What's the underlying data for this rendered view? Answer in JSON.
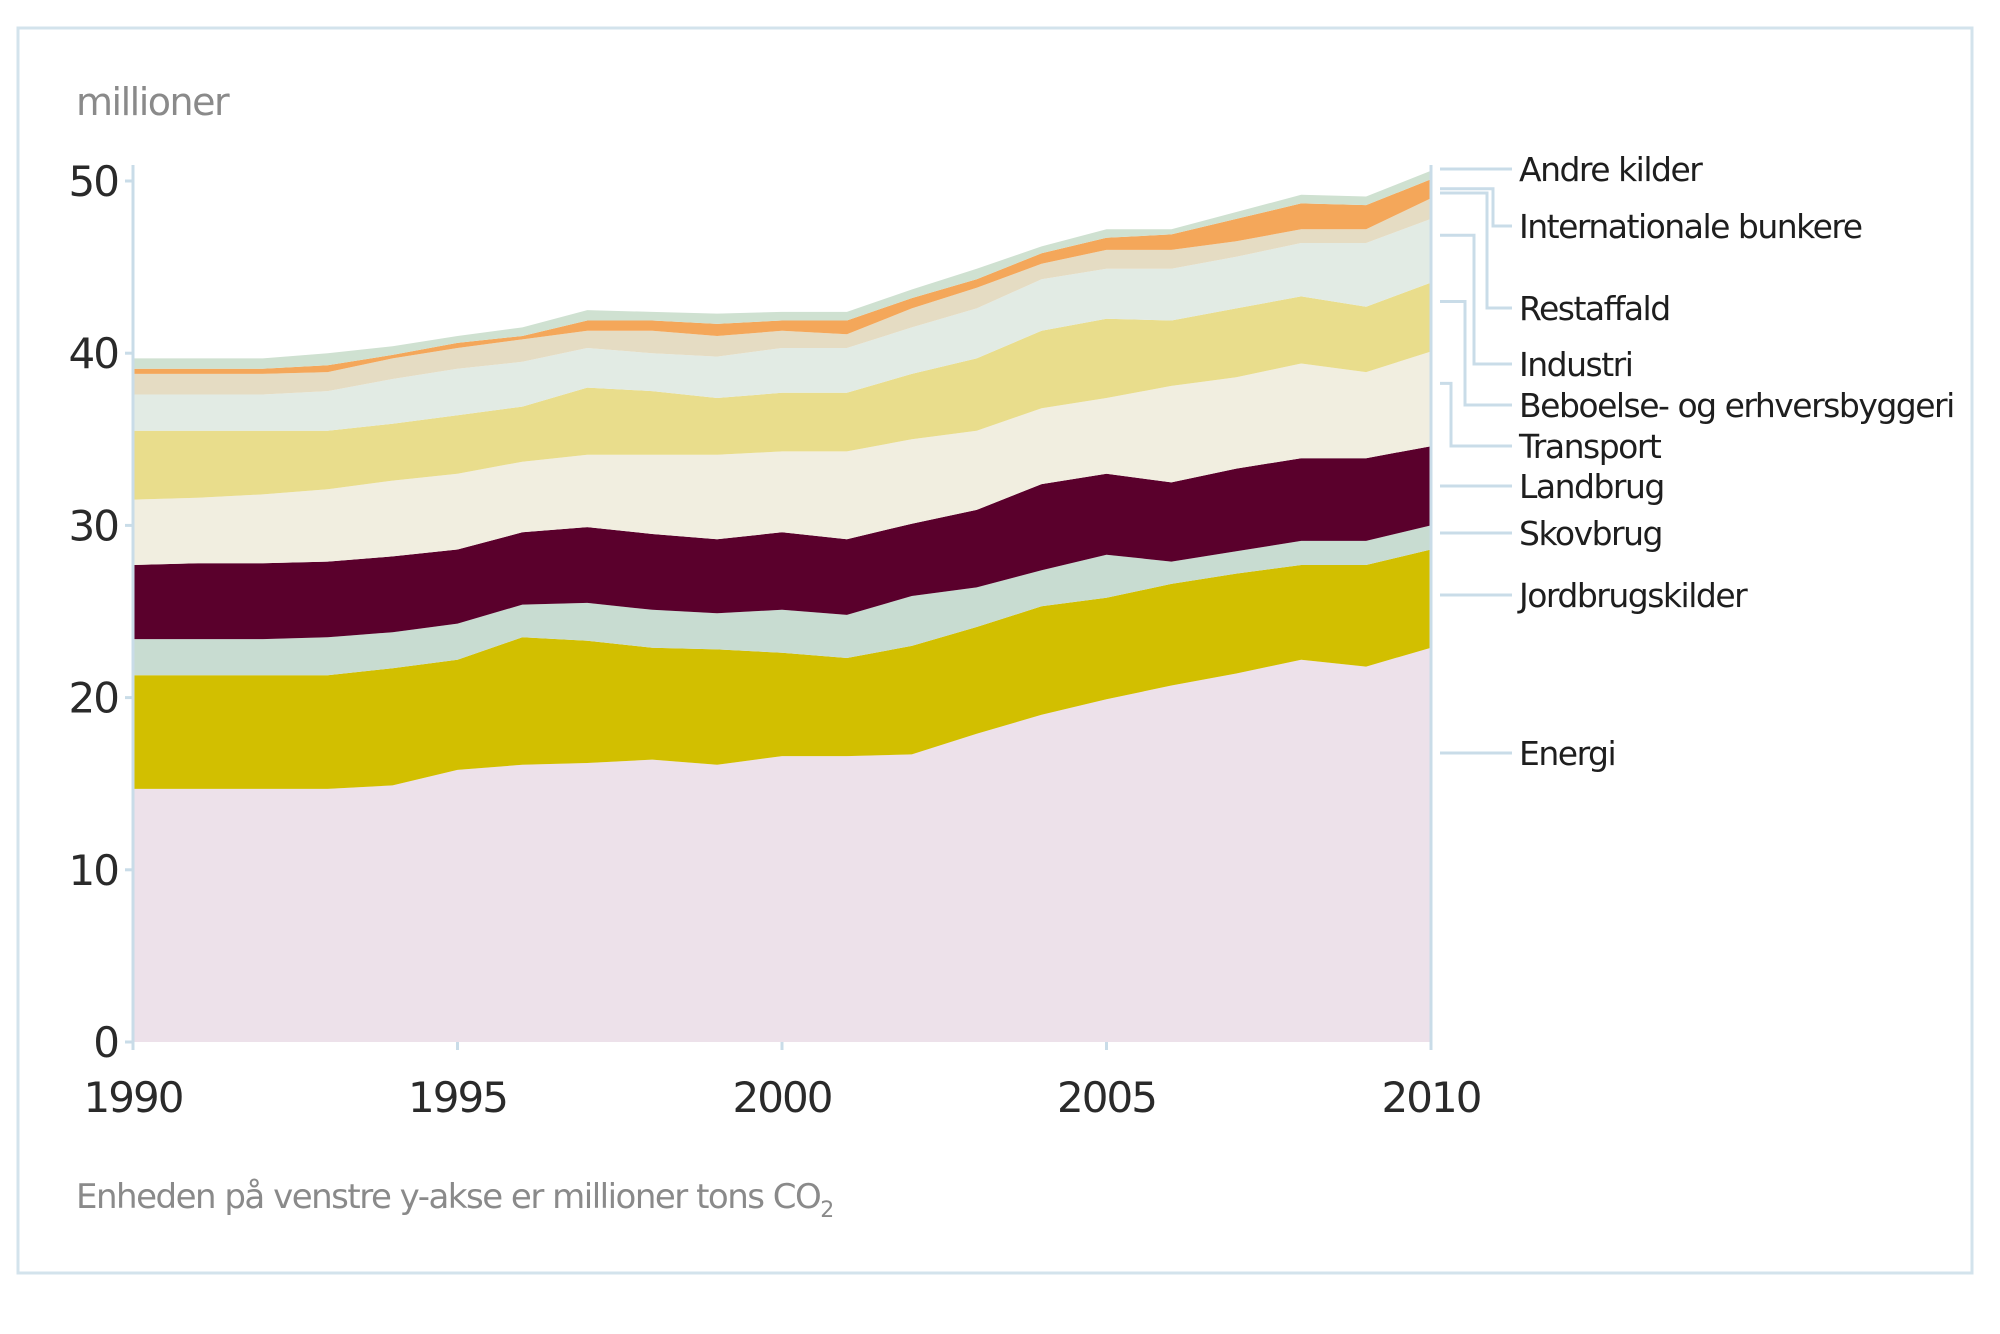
{
  "chart_data": {
    "type": "area",
    "stacked": true,
    "ylabel": "millioner",
    "note": "Enheden på venstre y-akse er millioner tons CO",
    "note_subscript": "2",
    "ylim": [
      0,
      50
    ],
    "yticks": [
      0,
      10,
      20,
      30,
      40,
      50
    ],
    "xlim": [
      1990,
      2010
    ],
    "xticks": [
      1990,
      1995,
      2000,
      2005,
      2010
    ],
    "grid": false,
    "legend_placement": "right",
    "x": [
      1990,
      1991,
      1992,
      1993,
      1994,
      1995,
      1996,
      1997,
      1998,
      1999,
      2000,
      2001,
      2002,
      2003,
      2004,
      2005,
      2006,
      2007,
      2008,
      2009,
      2010
    ],
    "series": [
      {
        "name": "Energi",
        "color": "#ede1ea",
        "values": [
          14.7,
          14.7,
          14.7,
          14.7,
          14.9,
          15.8,
          16.1,
          16.2,
          16.4,
          16.1,
          16.6,
          16.6,
          16.7,
          17.9,
          19.0,
          19.9,
          20.7,
          21.4,
          22.2,
          21.8,
          22.9
        ]
      },
      {
        "name": "Jordbrugskilder",
        "color": "#d2bf00",
        "values": [
          6.6,
          6.6,
          6.6,
          6.6,
          6.8,
          6.4,
          7.4,
          7.1,
          6.5,
          6.7,
          6.0,
          5.7,
          6.3,
          6.2,
          6.3,
          5.9,
          5.9,
          5.8,
          5.5,
          5.9,
          5.7
        ]
      },
      {
        "name": "Skovbrug",
        "color": "#c8dcd1",
        "values": [
          2.1,
          2.1,
          2.1,
          2.2,
          2.1,
          2.1,
          1.9,
          2.2,
          2.2,
          2.1,
          2.5,
          2.5,
          2.9,
          2.3,
          2.1,
          2.5,
          1.3,
          1.3,
          1.4,
          1.4,
          1.4
        ]
      },
      {
        "name": "Landbrug",
        "color": "#5a002c",
        "values": [
          4.3,
          4.4,
          4.4,
          4.4,
          4.4,
          4.3,
          4.2,
          4.4,
          4.4,
          4.3,
          4.5,
          4.4,
          4.2,
          4.5,
          5.0,
          4.7,
          4.6,
          4.8,
          4.8,
          4.8,
          4.6
        ]
      },
      {
        "name": "Transport",
        "color": "#f1eee0",
        "values": [
          3.8,
          3.8,
          4.0,
          4.2,
          4.4,
          4.4,
          4.1,
          4.2,
          4.6,
          4.9,
          4.7,
          5.1,
          4.9,
          4.6,
          4.4,
          4.4,
          5.6,
          5.3,
          5.5,
          5.0,
          5.5
        ]
      },
      {
        "name": "Beboelse- og erhversbyggeri",
        "color": "#e9dd8c",
        "values": [
          4.0,
          3.9,
          3.7,
          3.4,
          3.3,
          3.4,
          3.2,
          3.9,
          3.7,
          3.3,
          3.4,
          3.4,
          3.8,
          4.2,
          4.5,
          4.6,
          3.8,
          4.0,
          3.9,
          3.8,
          4.0
        ]
      },
      {
        "name": "Industri",
        "color": "#e2ebe4",
        "values": [
          2.1,
          2.1,
          2.1,
          2.3,
          2.6,
          2.7,
          2.6,
          2.3,
          2.2,
          2.4,
          2.6,
          2.6,
          2.7,
          2.9,
          3.0,
          2.9,
          3.0,
          3.0,
          3.1,
          3.7,
          3.7
        ]
      },
      {
        "name": "Restaffald",
        "color": "#e5dcc3",
        "values": [
          1.2,
          1.2,
          1.2,
          1.1,
          1.2,
          1.2,
          1.3,
          1.0,
          1.3,
          1.2,
          1.0,
          0.8,
          1.1,
          1.2,
          0.9,
          1.1,
          1.1,
          0.9,
          0.8,
          0.8,
          1.2
        ]
      },
      {
        "name": "Internationale bunkere",
        "color": "#f4a75a",
        "values": [
          0.3,
          0.3,
          0.3,
          0.4,
          0.2,
          0.3,
          0.2,
          0.6,
          0.6,
          0.7,
          0.6,
          0.8,
          0.6,
          0.5,
          0.6,
          0.7,
          0.9,
          1.3,
          1.5,
          1.4,
          1.1
        ]
      },
      {
        "name": "Andre kilder",
        "color": "#cfe1d1",
        "values": [
          0.6,
          0.6,
          0.6,
          0.7,
          0.5,
          0.4,
          0.5,
          0.6,
          0.5,
          0.6,
          0.5,
          0.5,
          0.5,
          0.6,
          0.4,
          0.5,
          0.3,
          0.4,
          0.5,
          0.5,
          0.5
        ]
      }
    ],
    "axis_color": "#c9dce8",
    "frame_color": "#d3e3ec"
  }
}
